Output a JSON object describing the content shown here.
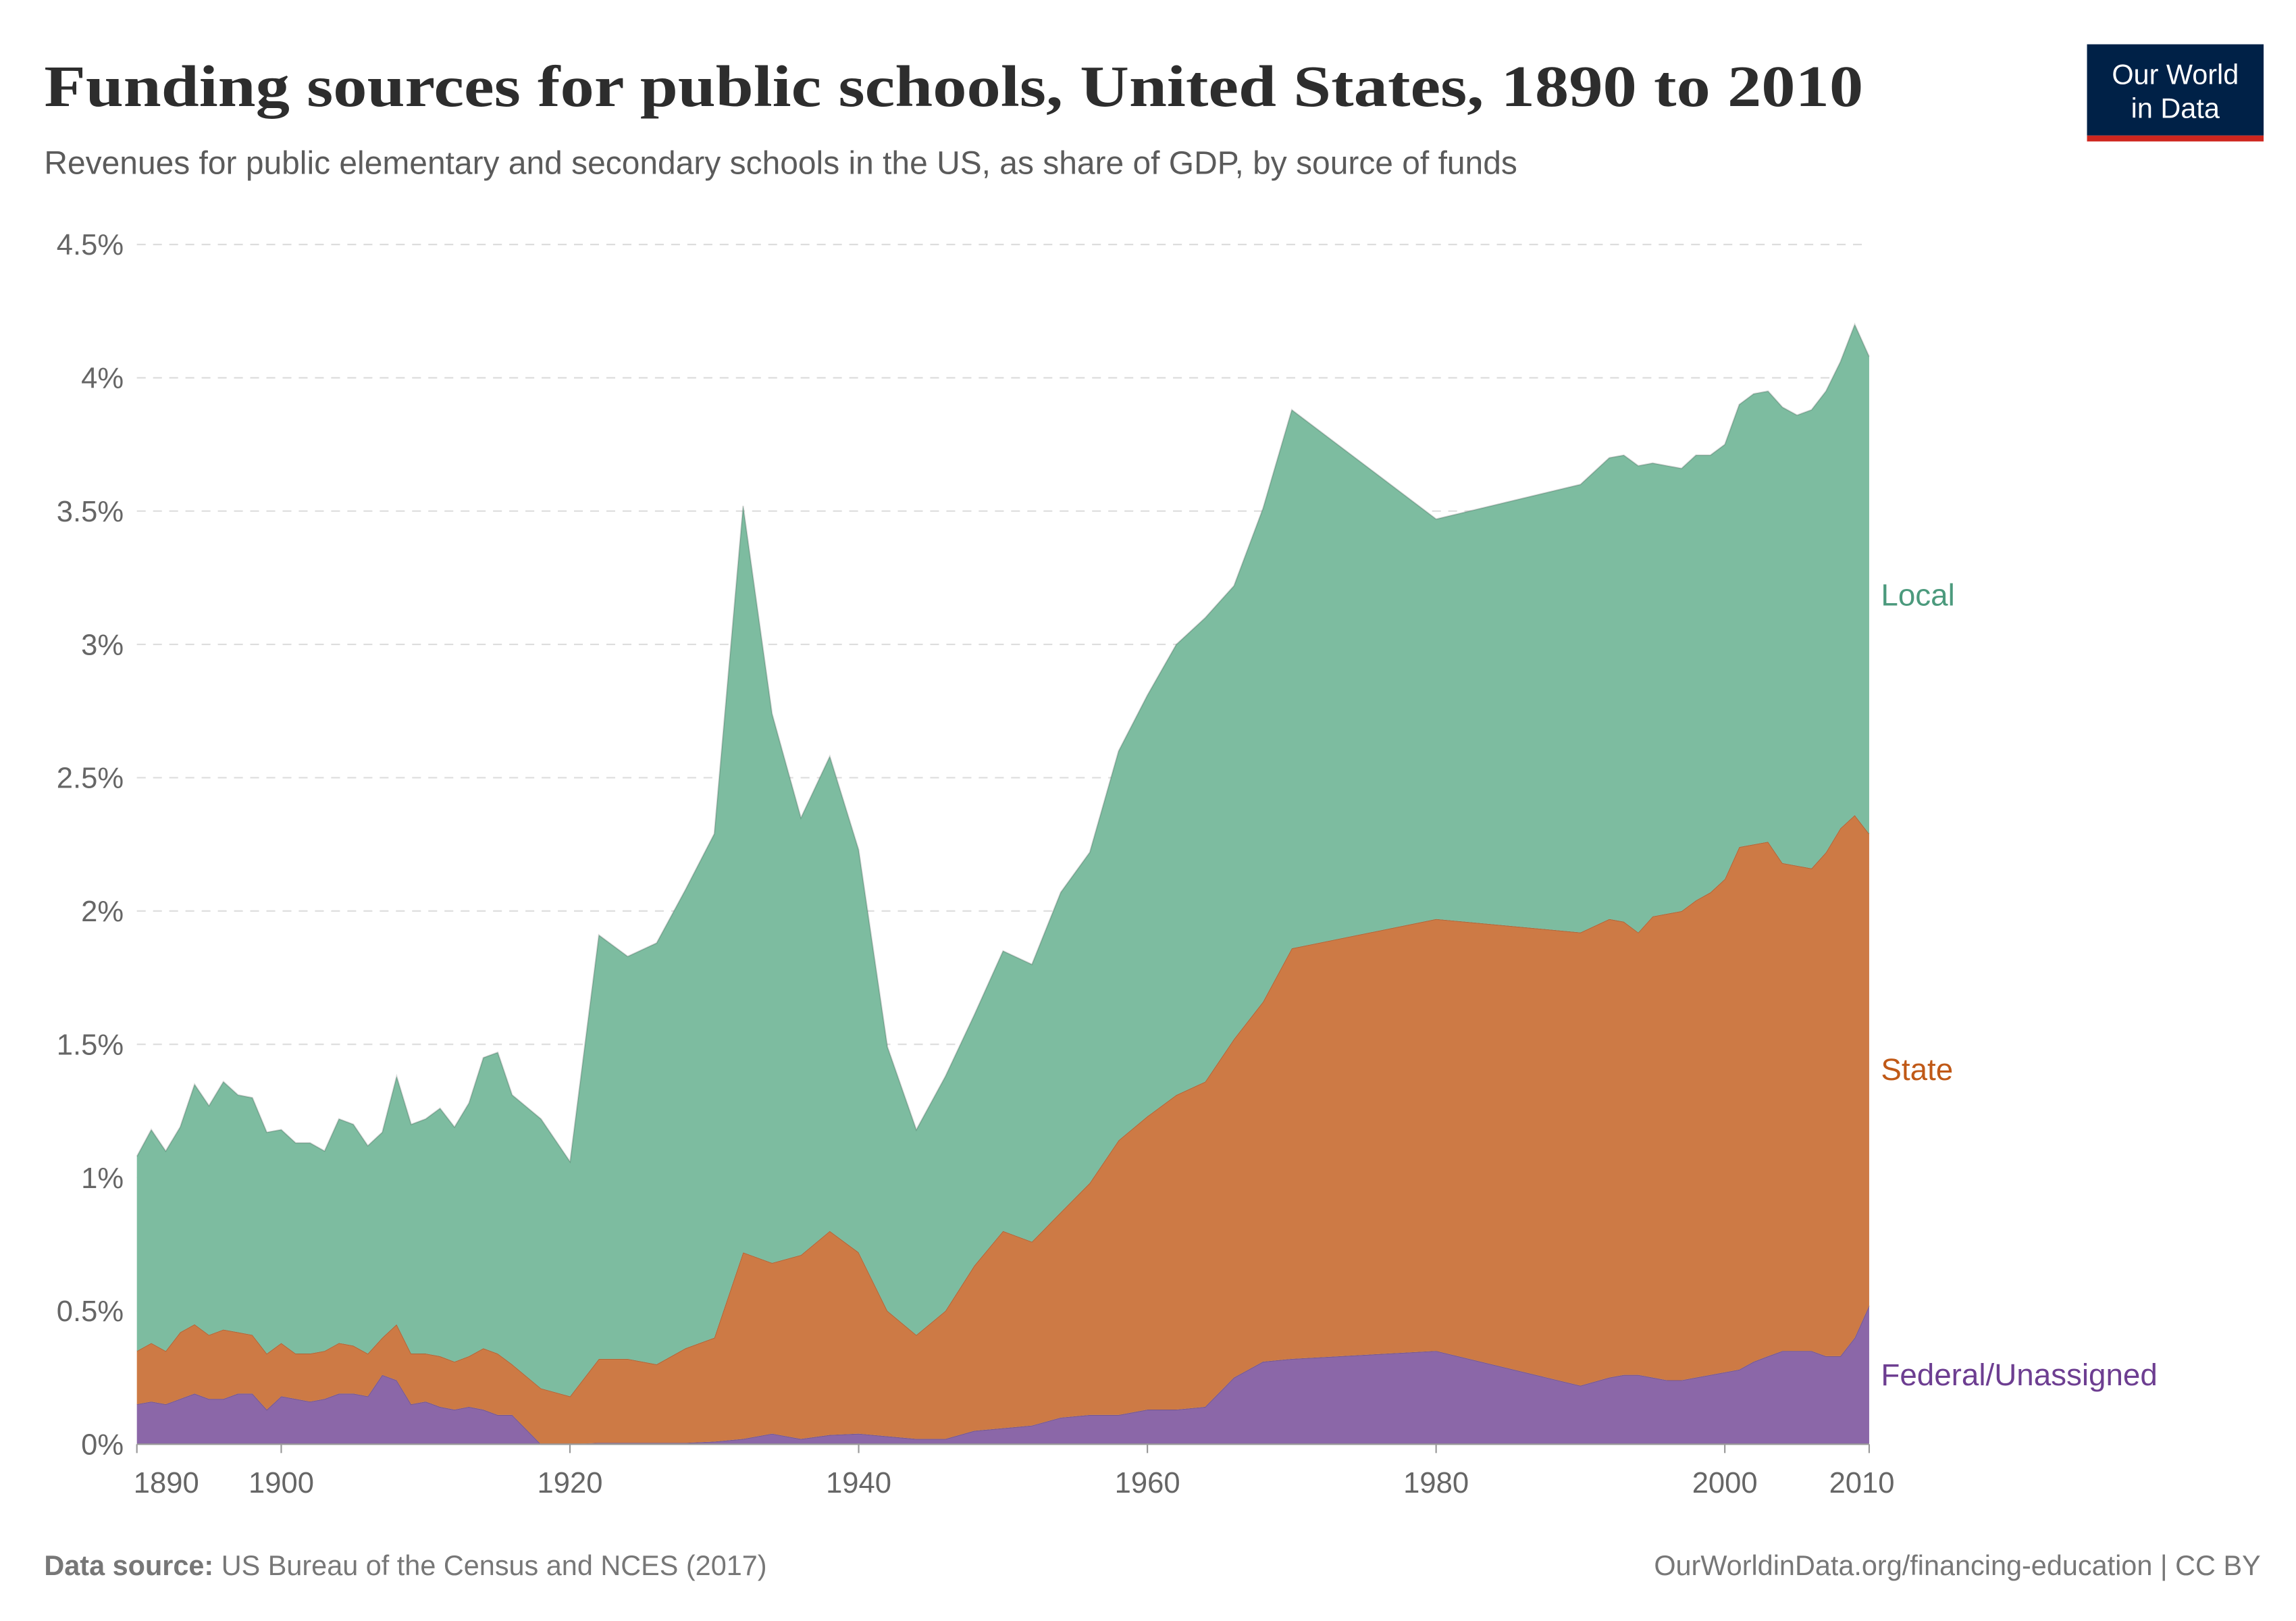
{
  "header": {
    "title": "Funding sources for public schools, United States, 1890 to 2010",
    "subtitle": "Revenues for public elementary and secondary schools in the US, as share of GDP, by source of funds"
  },
  "logo": {
    "line1": "Our World",
    "line2": "in Data",
    "bg": "#002147",
    "accent": "#ce261e"
  },
  "footer": {
    "source_label": "Data source:",
    "source": "US Bureau of the Census and NCES (2017)",
    "url": "OurWorldinData.org/financing-education | CC BY"
  },
  "chart_data": {
    "type": "area",
    "stacked": true,
    "title": "Funding sources for public schools, United States, 1890 to 2010",
    "xlabel": "",
    "ylabel": "",
    "xlim": [
      1890,
      2010
    ],
    "ylim": [
      0,
      4.5
    ],
    "grid": "horizontal dashed",
    "legend": "right, inline labels",
    "y_ticks": [
      "0%",
      "0.5%",
      "1%",
      "1.5%",
      "2%",
      "2.5%",
      "3%",
      "3.5%",
      "4%",
      "4.5%"
    ],
    "y_tick_values": [
      0,
      0.5,
      1,
      1.5,
      2,
      2.5,
      3,
      3.5,
      4,
      4.5
    ],
    "x_ticks": [
      "1890",
      "1900",
      "1920",
      "1940",
      "1960",
      "1980",
      "2000",
      "2010"
    ],
    "x_tick_values": [
      1890,
      1900,
      1920,
      1940,
      1960,
      1980,
      2000,
      2010
    ],
    "x": [
      1890,
      1891,
      1892,
      1893,
      1894,
      1895,
      1896,
      1897,
      1898,
      1899,
      1900,
      1901,
      1902,
      1903,
      1904,
      1905,
      1906,
      1907,
      1908,
      1909,
      1910,
      1911,
      1912,
      1913,
      1914,
      1915,
      1916,
      1918,
      1920,
      1922,
      1924,
      1926,
      1928,
      1930,
      1932,
      1934,
      1936,
      1938,
      1940,
      1942,
      1944,
      1946,
      1948,
      1950,
      1952,
      1954,
      1956,
      1958,
      1960,
      1962,
      1964,
      1966,
      1968,
      1970,
      1980,
      1990,
      1992,
      1993,
      1994,
      1995,
      1996,
      1997,
      1998,
      1999,
      2000,
      2001,
      2002,
      2003,
      2004,
      2005,
      2006,
      2007,
      2008,
      2009,
      2010
    ],
    "series": [
      {
        "name": "Federal/Unassigned",
        "color": "#8b67a8",
        "label_color": "#6d3e91",
        "values": [
          0.15,
          0.16,
          0.15,
          0.17,
          0.19,
          0.17,
          0.17,
          0.19,
          0.19,
          0.13,
          0.18,
          0.17,
          0.16,
          0.17,
          0.19,
          0.19,
          0.18,
          0.26,
          0.24,
          0.15,
          0.16,
          0.14,
          0.13,
          0.14,
          0.13,
          0.11,
          0.11,
          0,
          0,
          0.005,
          0.005,
          0.005,
          0.005,
          0.01,
          0.02,
          0.04,
          0.02,
          0.035,
          0.04,
          0.03,
          0.02,
          0.02,
          0.05,
          0.06,
          0.07,
          0.1,
          0.11,
          0.11,
          0.13,
          0.13,
          0.14,
          0.25,
          0.31,
          0.32,
          0.35,
          0.22,
          0.25,
          0.26,
          0.26,
          0.25,
          0.24,
          0.24,
          0.25,
          0.26,
          0.27,
          0.28,
          0.31,
          0.33,
          0.35,
          0.35,
          0.35,
          0.33,
          0.33,
          0.4,
          0.52
        ]
      },
      {
        "name": "State",
        "color": "#cd7a45",
        "label_color": "#c05917",
        "values": [
          0.2,
          0.22,
          0.2,
          0.25,
          0.26,
          0.24,
          0.26,
          0.23,
          0.22,
          0.21,
          0.2,
          0.17,
          0.18,
          0.18,
          0.19,
          0.18,
          0.16,
          0.14,
          0.21,
          0.19,
          0.18,
          0.19,
          0.18,
          0.19,
          0.23,
          0.23,
          0.19,
          0.21,
          0.18,
          0.315,
          0.315,
          0.295,
          0.355,
          0.39,
          0.7,
          0.64,
          0.69,
          0.765,
          0.68,
          0.47,
          0.39,
          0.48,
          0.62,
          0.74,
          0.69,
          0.77,
          0.87,
          1.03,
          1.1,
          1.18,
          1.22,
          1.27,
          1.35,
          1.54,
          1.62,
          1.7,
          1.72,
          1.7,
          1.66,
          1.73,
          1.75,
          1.76,
          1.79,
          1.81,
          1.85,
          1.96,
          1.94,
          1.93,
          1.83,
          1.82,
          1.81,
          1.89,
          1.98,
          1.96,
          1.77
        ]
      },
      {
        "name": "Local",
        "color": "#7dbca0",
        "label_color": "#4c9a7d",
        "values": [
          0.73,
          0.8,
          0.75,
          0.77,
          0.9,
          0.86,
          0.93,
          0.89,
          0.89,
          0.83,
          0.8,
          0.79,
          0.79,
          0.75,
          0.84,
          0.83,
          0.78,
          0.77,
          0.93,
          0.86,
          0.88,
          0.93,
          0.88,
          0.95,
          1.09,
          1.13,
          1.01,
          1.01,
          0.88,
          1.59,
          1.51,
          1.58,
          1.72,
          1.89,
          2.8,
          2.06,
          1.64,
          1.78,
          1.51,
          0.99,
          0.77,
          0.88,
          0.94,
          1.05,
          1.04,
          1.2,
          1.24,
          1.46,
          1.58,
          1.69,
          1.74,
          1.7,
          1.85,
          2.02,
          1.5,
          1.68,
          1.73,
          1.75,
          1.75,
          1.7,
          1.68,
          1.66,
          1.67,
          1.64,
          1.63,
          1.66,
          1.69,
          1.69,
          1.71,
          1.69,
          1.72,
          1.73,
          1.75,
          1.84,
          1.79
        ]
      }
    ]
  }
}
